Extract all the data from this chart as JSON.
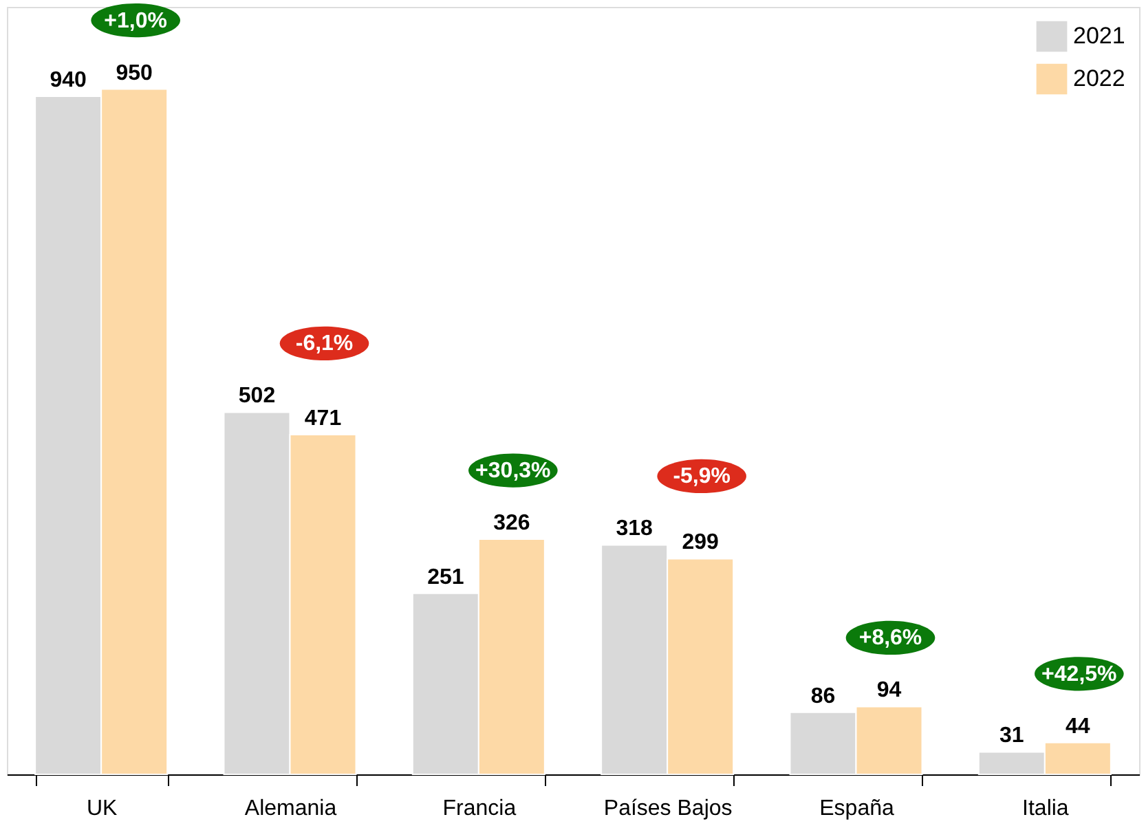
{
  "chart_data": {
    "type": "bar",
    "categories": [
      "UK",
      "Alemania",
      "Francia",
      "Países Bajos",
      "España",
      "Italia"
    ],
    "series": [
      {
        "name": "2021",
        "color": "#d9d9d9",
        "values": [
          940,
          502,
          251,
          318,
          86,
          31
        ]
      },
      {
        "name": "2022",
        "color": "#fdd9a6",
        "values": [
          950,
          471,
          326,
          299,
          94,
          44
        ]
      }
    ],
    "data_labels": true,
    "legend": "top right",
    "grid": false,
    "annotations": [
      {
        "text": "+1,0%",
        "x": "UK",
        "y": 950
      },
      {
        "text": "-6,1%",
        "x": "Alemania",
        "y": 502
      },
      {
        "text": "+30,3%",
        "x": "Francia",
        "y": 326
      },
      {
        "text": "-5,9%",
        "x": "Países Bajos",
        "y": 318
      },
      {
        "text": "+8,6%",
        "x": "España",
        "y": 94
      },
      {
        "text": "+42,5%",
        "x": "Italia",
        "y": 44
      }
    ]
  }
}
